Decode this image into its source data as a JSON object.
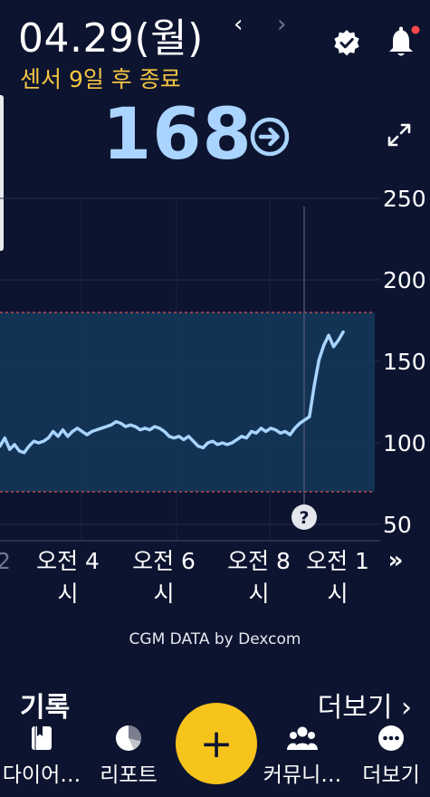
{
  "header": {
    "date": "04.29(월)",
    "prev_arrow": "‹",
    "next_arrow": "›",
    "sensor_status": "센서 9일 후 종료",
    "reading": "168"
  },
  "chart_data": {
    "type": "line",
    "x_tick_labels": [
      "2",
      "오전 4\n시",
      "오전 6\n시",
      "오전 8\n시",
      "오전 1\n시"
    ],
    "yticks": [
      250,
      200,
      150,
      100,
      50
    ],
    "ylim": [
      40,
      255
    ],
    "target_range": [
      70,
      180
    ],
    "help_label": "?",
    "scroll_label": "»",
    "series": [
      {
        "values": [
          [
            0.0,
            98
          ],
          [
            0.15,
            103
          ],
          [
            0.3,
            96
          ],
          [
            0.45,
            99
          ],
          [
            0.6,
            95
          ],
          [
            0.75,
            94
          ],
          [
            0.9,
            98
          ],
          [
            1.05,
            101
          ],
          [
            1.2,
            100
          ],
          [
            1.35,
            101
          ],
          [
            1.5,
            103
          ],
          [
            1.65,
            107
          ],
          [
            1.8,
            104
          ],
          [
            1.95,
            108
          ],
          [
            2.1,
            104
          ],
          [
            2.25,
            107
          ],
          [
            2.4,
            109
          ],
          [
            2.55,
            107
          ],
          [
            2.7,
            105
          ],
          [
            2.85,
            107
          ],
          [
            3.0,
            108
          ],
          [
            3.15,
            109
          ],
          [
            3.3,
            110
          ],
          [
            3.45,
            111
          ],
          [
            3.6,
            113
          ],
          [
            3.75,
            112
          ],
          [
            3.9,
            110
          ],
          [
            4.05,
            111
          ],
          [
            4.2,
            110
          ],
          [
            4.35,
            108
          ],
          [
            4.5,
            109
          ],
          [
            4.65,
            108
          ],
          [
            4.8,
            110
          ],
          [
            4.95,
            109
          ],
          [
            5.1,
            107
          ],
          [
            5.25,
            104
          ],
          [
            5.4,
            103
          ],
          [
            5.55,
            104
          ],
          [
            5.7,
            102
          ],
          [
            5.85,
            104
          ],
          [
            6.0,
            101
          ],
          [
            6.15,
            98
          ],
          [
            6.3,
            97
          ],
          [
            6.45,
            100
          ],
          [
            6.6,
            101
          ],
          [
            6.75,
            99
          ],
          [
            6.9,
            100
          ],
          [
            7.05,
            99
          ],
          [
            7.2,
            100
          ],
          [
            7.35,
            102
          ],
          [
            7.5,
            104
          ],
          [
            7.65,
            103
          ],
          [
            7.8,
            107
          ],
          [
            7.95,
            106
          ],
          [
            8.1,
            109
          ],
          [
            8.25,
            107
          ],
          [
            8.4,
            109
          ],
          [
            8.55,
            108
          ],
          [
            8.7,
            106
          ],
          [
            8.85,
            107
          ],
          [
            9.0,
            105
          ],
          [
            9.15,
            109
          ],
          [
            9.3,
            112
          ],
          [
            9.45,
            114
          ],
          [
            9.6,
            116
          ],
          [
            9.75,
            135
          ],
          [
            9.9,
            151
          ],
          [
            10.05,
            160
          ],
          [
            10.2,
            166
          ],
          [
            10.35,
            159
          ],
          [
            10.5,
            163
          ],
          [
            10.65,
            168
          ]
        ],
        "color": "#a9d4ff"
      }
    ]
  },
  "watermark": "CGM DATA by Dexcom",
  "section": {
    "title": "기록",
    "more": "더보기 ›"
  },
  "tabs": [
    {
      "label": "다이어…",
      "icon": "diary-icon"
    },
    {
      "label": "리포트",
      "icon": "report-icon"
    },
    {
      "label": "커뮤니…",
      "icon": "community-icon"
    },
    {
      "label": "더보기",
      "icon": "more-icon"
    }
  ],
  "fab_symbol": "+"
}
